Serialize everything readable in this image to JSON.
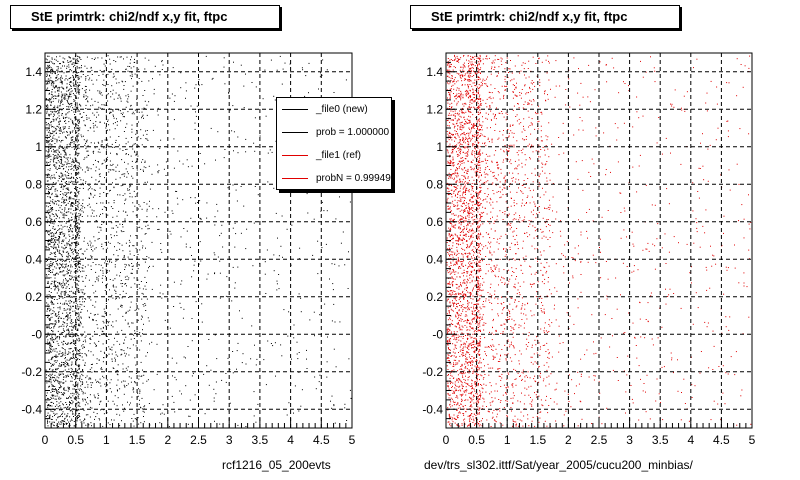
{
  "panels": [
    {
      "title": "StE primtrk: chi2/ndf x,y fit, ftpc",
      "footer": "rcf1216_05_200evts",
      "marker_color": "#000000"
    },
    {
      "title": "StE primtrk: chi2/ndf x,y fit, ftpc",
      "footer": "dev/trs_sl302.ittf/Sat/year_2005/cucu200_minbias/",
      "marker_color": "#e00000"
    }
  ],
  "legend": {
    "entries": [
      {
        "label": "_file0 (new)",
        "color": "#000000"
      },
      {
        "label": "prob = 1.000000",
        "color": "#000000"
      },
      {
        "label": "_file1 (ref)",
        "color": "#e00000"
      },
      {
        "label": "probN = 0.999494",
        "color": "#e00000"
      }
    ]
  },
  "chart_data": [
    {
      "type": "scatter",
      "title": "StE primtrk: chi2/ndf x,y fit, ftpc",
      "xlim": [
        0,
        5
      ],
      "ylim": [
        -0.5,
        1.5
      ],
      "xticks": [
        "0",
        "0.5",
        "1",
        "1.5",
        "2",
        "2.5",
        "3",
        "3.5",
        "4",
        "4.5",
        "5"
      ],
      "yticks": [
        "-0.4",
        "-0.2",
        "-0",
        "0.2",
        "0.4",
        "0.6",
        "0.8",
        "1",
        "1.2",
        "1.4"
      ],
      "grid": true,
      "series": [
        {
          "name": "_file0 (new)",
          "color": "#000000",
          "distribution": "dense near x=0-0.5, falling off toward x=5, uniform in y"
        }
      ]
    },
    {
      "type": "scatter",
      "title": "StE primtrk: chi2/ndf x,y fit, ftpc",
      "xlim": [
        0,
        5
      ],
      "ylim": [
        -0.5,
        1.5
      ],
      "xticks": [
        "0",
        "0.5",
        "1",
        "1.5",
        "2",
        "2.5",
        "3",
        "3.5",
        "4",
        "4.5",
        "5"
      ],
      "yticks": [
        "-0.4",
        "-0.2",
        "-0",
        "0.2",
        "0.4",
        "0.6",
        "0.8",
        "1",
        "1.2",
        "1.4"
      ],
      "grid": true,
      "series": [
        {
          "name": "_file1 (ref)",
          "color": "#e00000",
          "distribution": "dense near x=0-0.5, falling off toward x=5, uniform in y"
        }
      ]
    }
  ]
}
